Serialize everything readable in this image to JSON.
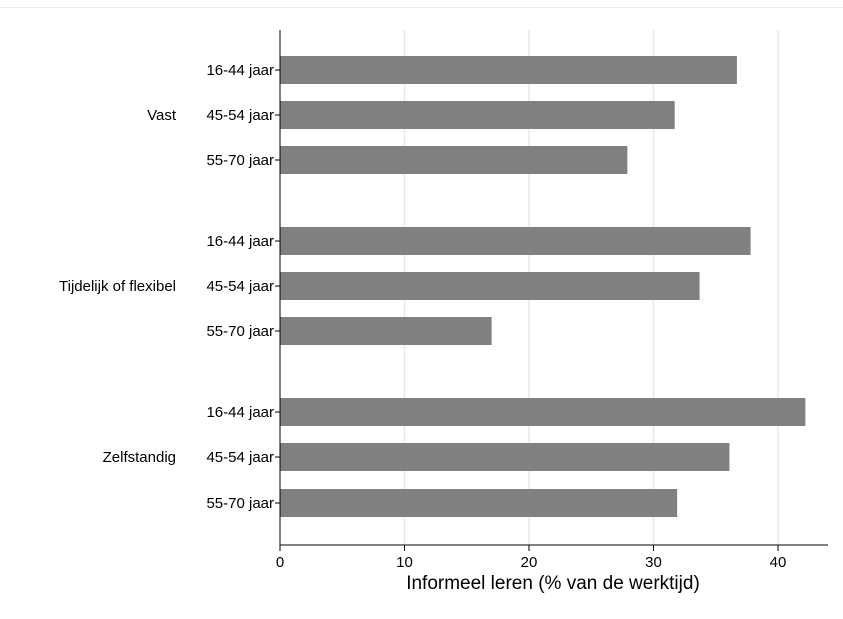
{
  "chart_data": {
    "type": "bar",
    "orientation": "horizontal",
    "xlabel": "Informeel leren (% van de werktijd)",
    "xlim": [
      0,
      44
    ],
    "xticks": [
      0,
      10,
      20,
      30,
      40
    ],
    "grid": true,
    "bar_color": "#808080",
    "groups": [
      {
        "label": "Vast",
        "categories": [
          "16-44 jaar",
          "45-54 jaar",
          "55-70 jaar"
        ],
        "values": [
          36.7,
          31.7,
          27.9
        ]
      },
      {
        "label": "Tijdelijk of flexibel",
        "categories": [
          "16-44 jaar",
          "45-54 jaar",
          "55-70 jaar"
        ],
        "values": [
          37.8,
          33.7,
          17.0
        ]
      },
      {
        "label": "Zelfstandig",
        "categories": [
          "16-44 jaar",
          "45-54 jaar",
          "55-70 jaar"
        ],
        "values": [
          42.2,
          36.1,
          31.9
        ]
      }
    ]
  }
}
